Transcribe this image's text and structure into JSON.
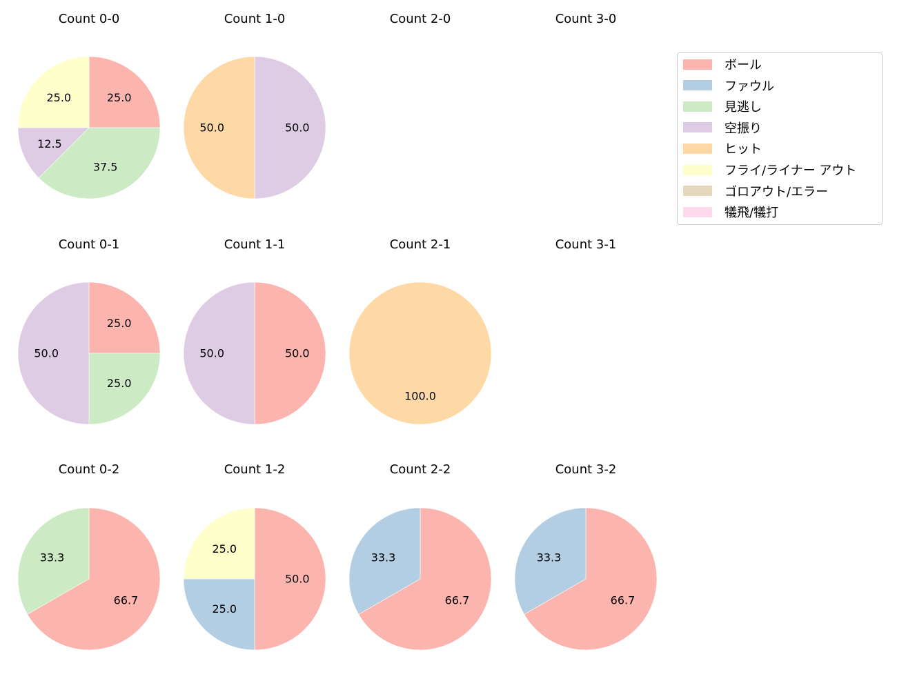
{
  "chart_data": {
    "type": "pie",
    "layout": {
      "rows": 3,
      "cols": 4,
      "start_angle": "12 o'clock",
      "direction": "clockwise",
      "label_format": "%.1f"
    },
    "legend": {
      "position": "upper right",
      "entries": [
        {
          "label": "ボール",
          "color": "#fbb4ae"
        },
        {
          "label": "ファウル",
          "color": "#b3cde3"
        },
        {
          "label": "見逃し",
          "color": "#ccebc5"
        },
        {
          "label": "空振り",
          "color": "#decbe4"
        },
        {
          "label": "ヒット",
          "color": "#fed9a6"
        },
        {
          "label": "フライ/ライナー アウト",
          "color": "#ffffcc"
        },
        {
          "label": "ゴロアウト/エラー",
          "color": "#e5d8bd"
        },
        {
          "label": "犠飛/犠打",
          "color": "#fddaec"
        }
      ]
    },
    "panels": [
      {
        "title": "Count 0-0",
        "row": 0,
        "col": 0,
        "slices": [
          {
            "category": "ボール",
            "value": 25.0
          },
          {
            "category": "見逃し",
            "value": 37.5
          },
          {
            "category": "空振り",
            "value": 12.5
          },
          {
            "category": "フライ/ライナー アウト",
            "value": 25.0
          }
        ]
      },
      {
        "title": "Count 1-0",
        "row": 0,
        "col": 1,
        "slices": [
          {
            "category": "空振り",
            "value": 50.0
          },
          {
            "category": "ヒット",
            "value": 50.0
          }
        ]
      },
      {
        "title": "Count 2-0",
        "row": 0,
        "col": 2,
        "slices": []
      },
      {
        "title": "Count 3-0",
        "row": 0,
        "col": 3,
        "slices": []
      },
      {
        "title": "Count 0-1",
        "row": 1,
        "col": 0,
        "slices": [
          {
            "category": "ボール",
            "value": 25.0
          },
          {
            "category": "見逃し",
            "value": 25.0
          },
          {
            "category": "空振り",
            "value": 50.0
          }
        ]
      },
      {
        "title": "Count 1-1",
        "row": 1,
        "col": 1,
        "slices": [
          {
            "category": "ボール",
            "value": 50.0
          },
          {
            "category": "空振り",
            "value": 50.0
          }
        ]
      },
      {
        "title": "Count 2-1",
        "row": 1,
        "col": 2,
        "slices": [
          {
            "category": "ヒット",
            "value": 100.0
          }
        ]
      },
      {
        "title": "Count 3-1",
        "row": 1,
        "col": 3,
        "slices": []
      },
      {
        "title": "Count 0-2",
        "row": 2,
        "col": 0,
        "slices": [
          {
            "category": "ボール",
            "value": 66.7
          },
          {
            "category": "見逃し",
            "value": 33.3
          }
        ]
      },
      {
        "title": "Count 1-2",
        "row": 2,
        "col": 1,
        "slices": [
          {
            "category": "ボール",
            "value": 50.0
          },
          {
            "category": "ファウル",
            "value": 25.0
          },
          {
            "category": "フライ/ライナー アウト",
            "value": 25.0
          }
        ]
      },
      {
        "title": "Count 2-2",
        "row": 2,
        "col": 2,
        "slices": [
          {
            "category": "ボール",
            "value": 66.7
          },
          {
            "category": "ファウル",
            "value": 33.3
          }
        ]
      },
      {
        "title": "Count 3-2",
        "row": 2,
        "col": 3,
        "slices": [
          {
            "category": "ボール",
            "value": 66.7
          },
          {
            "category": "ファウル",
            "value": 33.3
          }
        ]
      }
    ]
  }
}
